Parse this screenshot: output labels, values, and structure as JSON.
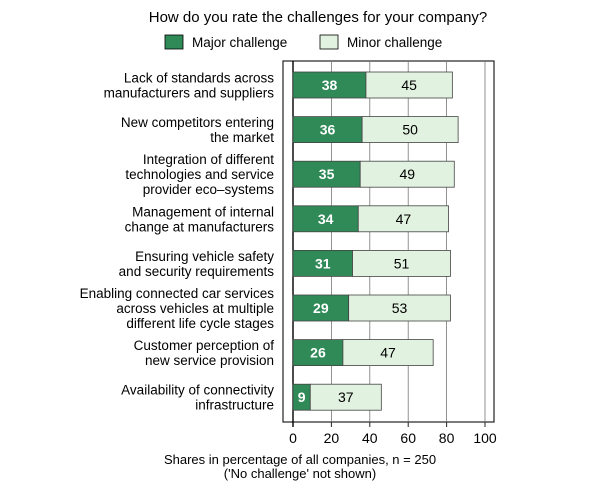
{
  "chart_data": {
    "type": "bar",
    "orientation": "horizontal",
    "stacked": true,
    "title": "How do you rate the challenges for your company?",
    "categories": [
      [
        "Lack of standards across",
        "manufacturers and suppliers"
      ],
      [
        "New competitors entering",
        "the market"
      ],
      [
        "Integration of different",
        "technologies and service",
        "provider eco–systems"
      ],
      [
        "Management of internal",
        "change at manufacturers"
      ],
      [
        "Ensuring vehicle safety",
        "and security requirements"
      ],
      [
        "Enabling connected car services",
        "across vehicles at multiple",
        "different life cycle stages"
      ],
      [
        "Customer perception of",
        "new service provision"
      ],
      [
        "Availability of connectivity",
        "infrastructure"
      ]
    ],
    "series": [
      {
        "name": "Major challenge",
        "color": "#2f8a58",
        "label_color": "#ffffff",
        "values": [
          38,
          36,
          35,
          34,
          31,
          29,
          26,
          9
        ]
      },
      {
        "name": "Minor challenge",
        "color": "#e2f2e0",
        "label_color": "#000000",
        "values": [
          45,
          50,
          49,
          47,
          51,
          53,
          47,
          37
        ]
      }
    ],
    "xlim": [
      0,
      100
    ],
    "xticks": [
      0,
      20,
      40,
      60,
      80,
      100
    ],
    "xlabel": [
      "Shares in percentage of all companies, n = 250",
      "('No challenge' not shown)"
    ],
    "grid": true,
    "legend": "top"
  }
}
